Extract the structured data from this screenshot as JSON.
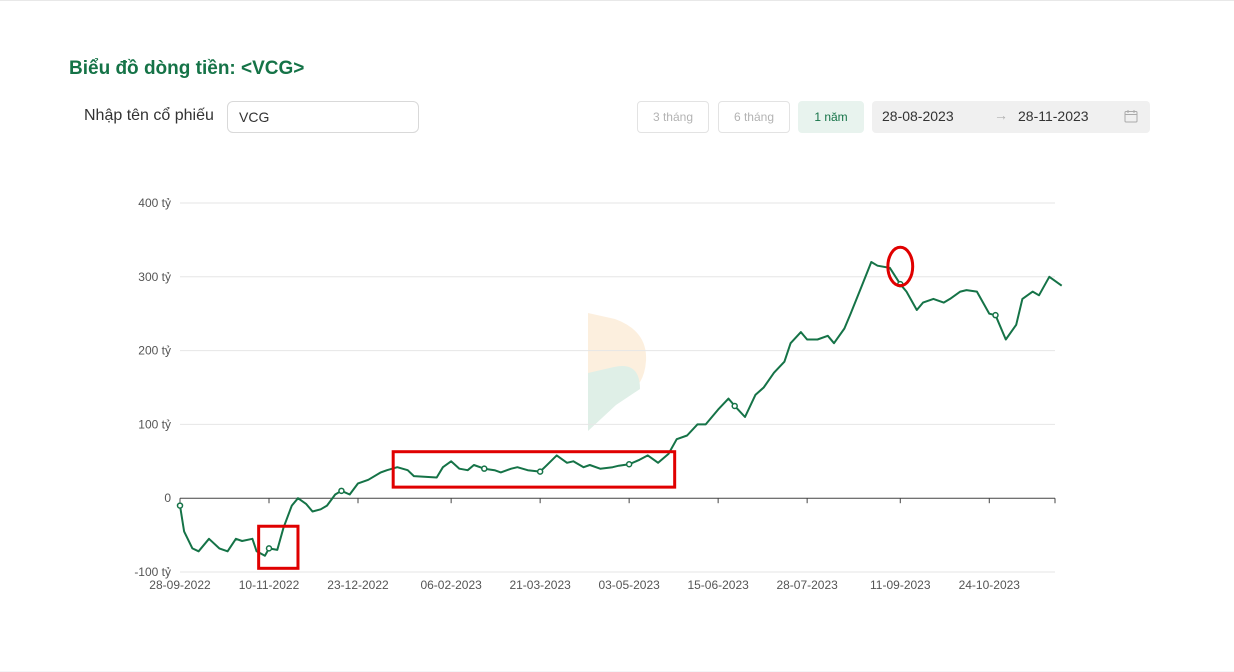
{
  "header": {
    "title": "Biểu đồ dòng tiền: <VCG>"
  },
  "filter": {
    "stock_label": "Nhập tên cổ phiếu",
    "stock_value": "VCG",
    "ranges": [
      {
        "label": "3 tháng",
        "active": false
      },
      {
        "label": "6 tháng",
        "active": false
      },
      {
        "label": "1 năm",
        "active": true
      }
    ],
    "date_from": "28-08-2023",
    "date_arrow": "→",
    "date_to": "28-11-2023"
  },
  "colors": {
    "line": "#157347",
    "accent": "#157347",
    "highlight": "#e00000"
  },
  "chart_data": {
    "type": "line",
    "title": "",
    "ylim": [
      -100,
      400
    ],
    "y_ticks": [
      -100,
      0,
      100,
      200,
      300,
      400
    ],
    "y_tick_labels": [
      "-100 tỷ",
      "0",
      "100 tỷ",
      "200 tỷ",
      "300 tỷ",
      "400 tỷ"
    ],
    "x_tick_labels": [
      "28-09-2022",
      "10-11-2022",
      "23-12-2022",
      "06-02-2023",
      "21-03-2023",
      "03-05-2023",
      "15-06-2023",
      "28-07-2023",
      "11-09-2023",
      "24-10-2023"
    ],
    "grid": true,
    "series": [
      {
        "x": [
          "28-09-2022",
          "30-09-2022",
          "04-10-2022",
          "07-10-2022",
          "12-10-2022",
          "17-10-2022",
          "21-10-2022",
          "25-10-2022",
          "28-10-2022",
          "02-11-2022",
          "04-11-2022",
          "08-11-2022",
          "10-11-2022",
          "14-11-2022",
          "17-11-2022",
          "21-11-2022",
          "24-11-2022",
          "28-11-2022",
          "01-12-2022",
          "05-12-2022",
          "08-12-2022",
          "12-12-2022",
          "15-12-2022",
          "19-12-2022",
          "23-12-2022",
          "28-12-2022",
          "03-01-2023",
          "06-01-2023",
          "11-01-2023",
          "16-01-2023",
          "19-01-2023",
          "30-01-2023",
          "02-02-2023",
          "06-02-2023",
          "10-02-2023",
          "14-02-2023",
          "17-02-2023",
          "22-02-2023",
          "27-02-2023",
          "02-03-2023",
          "07-03-2023",
          "10-03-2023",
          "15-03-2023",
          "21-03-2023",
          "24-03-2023",
          "29-03-2023",
          "03-04-2023",
          "06-04-2023",
          "11-04-2023",
          "14-04-2023",
          "19-04-2023",
          "25-04-2023",
          "28-04-2023",
          "03-05-2023",
          "08-05-2023",
          "12-05-2023",
          "17-05-2023",
          "22-05-2023",
          "26-05-2023",
          "31-05-2023",
          "05-06-2023",
          "09-06-2023",
          "15-06-2023",
          "20-06-2023",
          "23-06-2023",
          "28-06-2023",
          "03-07-2023",
          "07-07-2023",
          "12-07-2023",
          "17-07-2023",
          "20-07-2023",
          "25-07-2023",
          "28-07-2023",
          "02-08-2023",
          "07-08-2023",
          "10-08-2023",
          "15-08-2023",
          "18-08-2023",
          "23-08-2023",
          "28-08-2023",
          "31-08-2023",
          "06-09-2023",
          "11-09-2023",
          "14-09-2023",
          "19-09-2023",
          "22-09-2023",
          "27-09-2023",
          "02-10-2023",
          "05-10-2023",
          "10-10-2023",
          "13-10-2023",
          "18-10-2023",
          "24-10-2023",
          "27-10-2023",
          "01-11-2023",
          "06-11-2023",
          "09-11-2023",
          "14-11-2023",
          "17-11-2023",
          "22-11-2023",
          "28-11-2023"
        ],
        "values": [
          -10,
          -45,
          -68,
          -72,
          -55,
          -68,
          -72,
          -55,
          -58,
          -55,
          -72,
          -78,
          -68,
          -70,
          -40,
          -10,
          0,
          -8,
          -18,
          -15,
          -10,
          5,
          10,
          5,
          20,
          25,
          35,
          38,
          42,
          38,
          30,
          28,
          42,
          50,
          40,
          38,
          45,
          40,
          38,
          35,
          40,
          42,
          38,
          36,
          44,
          58,
          48,
          50,
          42,
          45,
          40,
          42,
          44,
          46,
          52,
          58,
          48,
          60,
          80,
          85,
          100,
          100,
          120,
          135,
          125,
          110,
          140,
          150,
          170,
          185,
          210,
          225,
          215,
          215,
          220,
          210,
          230,
          250,
          285,
          320,
          315,
          312,
          290,
          280,
          255,
          265,
          270,
          265,
          270,
          280,
          282,
          280,
          250,
          248,
          215,
          235,
          270,
          280,
          275,
          300,
          288
        ]
      }
    ],
    "annotations": [
      {
        "shape": "box",
        "x": [
          "05-11-2022",
          "24-11-2022"
        ],
        "y": [
          -38,
          -95
        ]
      },
      {
        "shape": "box",
        "x": [
          "09-01-2023",
          "25-05-2023"
        ],
        "y": [
          63,
          15
        ]
      },
      {
        "shape": "ellipse",
        "x": [
          "05-09-2023",
          "17-09-2023"
        ],
        "y": [
          340,
          288
        ]
      }
    ]
  }
}
